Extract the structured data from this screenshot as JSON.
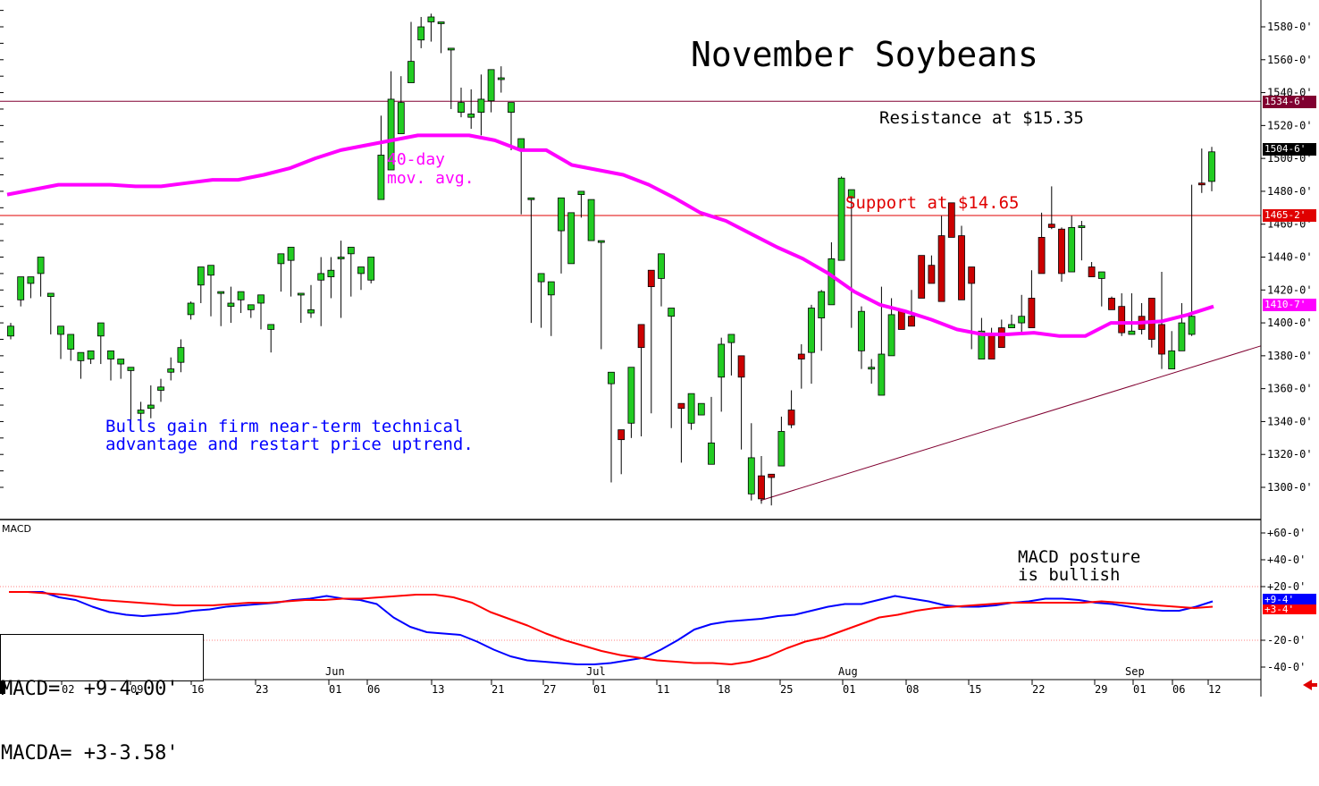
{
  "chart_data": {
    "type": "candlestick",
    "title": "November Soybeans",
    "x_tick_labels": [
      "02",
      "09",
      "16",
      "23",
      "01",
      "06",
      "13",
      "21",
      "27",
      "01",
      "11",
      "18",
      "25",
      "01",
      "08",
      "15",
      "22",
      "29",
      "01",
      "06",
      "12"
    ],
    "month_labels": [
      "Jun",
      "Jul",
      "Aug",
      "Sep"
    ],
    "y_ticks": [
      "1580-0'",
      "1560-0'",
      "1540-0'",
      "1520-0'",
      "1500-0'",
      "1480-0'",
      "1460-0'",
      "1440-0'",
      "1420-0'",
      "1400-0'",
      "1380-0'",
      "1360-0'",
      "1340-0'",
      "1320-0'",
      "1300-0'"
    ],
    "ylim": [
      1280,
      1595
    ],
    "bars": [
      [
        1392,
        1398,
        1390,
        1400
      ],
      [
        1414,
        1428,
        1410,
        1410
      ],
      [
        1424,
        1428,
        1415,
        1420
      ],
      [
        1430,
        1440,
        1417,
        1416
      ],
      [
        1416,
        1418,
        1393,
        1394
      ],
      [
        1393,
        1398,
        1378,
        1380
      ],
      [
        1384,
        1393,
        1377,
        1381
      ],
      [
        1377,
        1382,
        1366,
        1378
      ],
      [
        1378,
        1383,
        1375,
        1382
      ],
      [
        1392,
        1400,
        1375,
        1378
      ],
      [
        1378,
        1383,
        1365,
        1380
      ],
      [
        1375,
        1378,
        1366,
        1372
      ],
      [
        1371,
        1373,
        1338,
        1341
      ],
      [
        1345,
        1347,
        1340,
        1352
      ],
      [
        1348,
        1350,
        1342,
        1362
      ],
      [
        1359,
        1361,
        1352,
        1366
      ],
      [
        1370,
        1372,
        1365,
        1379
      ],
      [
        1376,
        1385,
        1370,
        1390
      ],
      [
        1405,
        1412,
        1402,
        1413
      ],
      [
        1423,
        1434,
        1412,
        1432
      ],
      [
        1429,
        1435,
        1404,
        1405
      ],
      [
        1418,
        1419,
        1398,
        1400
      ],
      [
        1410,
        1412,
        1400,
        1422
      ],
      [
        1414,
        1419,
        1406,
        1418
      ],
      [
        1408,
        1411,
        1403,
        1410
      ],
      [
        1412,
        1417,
        1396,
        1411
      ],
      [
        1396,
        1399,
        1382,
        1399
      ],
      [
        1436,
        1442,
        1422,
        1419
      ],
      [
        1438,
        1446,
        1416,
        1417
      ],
      [
        1417,
        1418,
        1400,
        1406
      ],
      [
        1406,
        1408,
        1403,
        1423
      ],
      [
        1426,
        1430,
        1398,
        1440
      ],
      [
        1428,
        1432,
        1415,
        1440
      ],
      [
        1440,
        1440,
        1403,
        1450
      ],
      [
        1442,
        1446,
        1416,
        1433
      ],
      [
        1430,
        1434,
        1420,
        1425
      ],
      [
        1426,
        1440,
        1424,
        1437
      ],
      [
        1475,
        1502,
        1490,
        1526
      ],
      [
        1493,
        1536,
        1540,
        1553
      ],
      [
        1515,
        1534,
        1522,
        1550
      ],
      [
        1546,
        1559,
        1570,
        1583
      ],
      [
        1572,
        1580,
        1567,
        1586
      ],
      [
        1583,
        1586,
        1571,
        1588
      ],
      [
        1582,
        1583,
        1564,
        1572
      ],
      [
        1566,
        1567,
        1530,
        1542
      ],
      [
        1528,
        1534,
        1525,
        1543
      ],
      [
        1525,
        1527,
        1518,
        1542
      ],
      [
        1528,
        1536,
        1514,
        1551
      ],
      [
        1535,
        1554,
        1528,
        1549
      ],
      [
        1548,
        1549,
        1540,
        1556
      ],
      [
        1528,
        1534,
        1505,
        1523
      ],
      [
        1505,
        1512,
        1471,
        1466
      ],
      [
        1475,
        1476,
        1400,
        1403
      ],
      [
        1425,
        1430,
        1397,
        1407
      ],
      [
        1417,
        1425,
        1392,
        1413
      ],
      [
        1456,
        1476,
        1430,
        1446
      ],
      [
        1436,
        1467,
        1461,
        1464
      ],
      [
        1478,
        1480,
        1464,
        1471
      ],
      [
        1450,
        1475,
        1455,
        1465
      ],
      [
        1449,
        1450,
        1384,
        1393
      ],
      [
        1363,
        1370,
        1303,
        1316
      ],
      [
        1335,
        1329,
        1308,
        1320
      ],
      [
        1339,
        1373,
        1330,
        1357
      ],
      [
        1399,
        1385,
        1331,
        1366
      ],
      [
        1432,
        1422,
        1345,
        1390
      ],
      [
        1427,
        1442,
        1416,
        1410
      ],
      [
        1404,
        1409,
        1336,
        1345
      ],
      [
        1351,
        1348,
        1315,
        1345
      ],
      [
        1339,
        1357,
        1335,
        1351
      ],
      [
        1344,
        1351,
        1345,
        1350
      ],
      [
        1314,
        1327,
        1340,
        1355
      ],
      [
        1367,
        1387,
        1346,
        1391
      ],
      [
        1388,
        1393,
        1368,
        1382
      ],
      [
        1380,
        1367,
        1323,
        1355
      ],
      [
        1296,
        1318,
        1292,
        1339
      ],
      [
        1307,
        1293,
        1290,
        1319
      ],
      [
        1308,
        1306,
        1289,
        1302
      ],
      [
        1313,
        1334,
        1314,
        1343
      ],
      [
        1347,
        1338,
        1336,
        1359
      ],
      [
        1381,
        1378,
        1360,
        1387
      ],
      [
        1382,
        1409,
        1363,
        1411
      ],
      [
        1403,
        1419,
        1383,
        1420
      ],
      [
        1411,
        1439,
        1428,
        1449
      ],
      [
        1438,
        1488,
        1458,
        1489
      ],
      [
        1476,
        1481,
        1397,
        1440
      ],
      [
        1383,
        1407,
        1372,
        1410
      ],
      [
        1373,
        1373,
        1363,
        1378
      ],
      [
        1356,
        1381,
        1418,
        1422
      ],
      [
        1380,
        1405,
        1401,
        1415
      ],
      [
        1408,
        1396,
        1402,
        1406
      ],
      [
        1404,
        1398,
        1409,
        1420
      ],
      [
        1441,
        1415,
        1427,
        1432
      ],
      [
        1435,
        1424,
        1428,
        1441
      ],
      [
        1453,
        1413,
        1420,
        1465
      ],
      [
        1473,
        1452,
        1457,
        1458
      ],
      [
        1453,
        1414,
        1424,
        1459
      ],
      [
        1434,
        1424,
        1384,
        1409
      ],
      [
        1378,
        1395,
        1383,
        1403
      ],
      [
        1393,
        1378,
        1382,
        1397
      ],
      [
        1397,
        1385,
        1389,
        1402
      ],
      [
        1397,
        1399,
        1399,
        1405
      ],
      [
        1400,
        1404,
        1394,
        1417
      ],
      [
        1415,
        1397,
        1432,
        1429
      ],
      [
        1452,
        1430,
        1460,
        1467
      ],
      [
        1460,
        1458,
        1457,
        1483
      ],
      [
        1457,
        1430,
        1425,
        1458
      ],
      [
        1431,
        1458,
        1464,
        1465
      ],
      [
        1458,
        1459,
        1438,
        1462
      ],
      [
        1434,
        1428,
        1434,
        1437
      ],
      [
        1427,
        1431,
        1410,
        1420
      ],
      [
        1415,
        1408,
        1414,
        1416
      ],
      [
        1410,
        1394,
        1392,
        1418
      ],
      [
        1393,
        1395,
        1399,
        1418
      ],
      [
        1404,
        1396,
        1393,
        1412
      ],
      [
        1415,
        1390,
        1385,
        1406
      ],
      [
        1399,
        1381,
        1372,
        1431
      ],
      [
        1372,
        1383,
        1391,
        1395
      ],
      [
        1383,
        1400,
        1388,
        1412
      ],
      [
        1393,
        1404,
        1392,
        1484
      ],
      [
        1485,
        1484,
        1479,
        1506
      ],
      [
        1486,
        1504,
        1480,
        1507
      ]
    ],
    "series": [
      {
        "name": "40-day mov. avg.",
        "color": "#ff00ff",
        "values": [
          1478,
          1481,
          1484,
          1484,
          1484,
          1483,
          1483,
          1485,
          1487,
          1487,
          1490,
          1494,
          1500,
          1505,
          1508,
          1511,
          1514,
          1514,
          1514,
          1511,
          1505,
          1505,
          1496,
          1493,
          1490,
          1484,
          1476,
          1467,
          1462,
          1454,
          1446,
          1439,
          1430,
          1419,
          1411,
          1407,
          1402,
          1396,
          1393,
          1393,
          1394,
          1392,
          1392,
          1400,
          1400,
          1401,
          1405,
          1410
        ]
      },
      {
        "name": "MACD",
        "color": "#0000ff",
        "values": [
          16,
          16,
          16,
          12,
          10,
          5,
          1,
          -1,
          -2,
          -1,
          0,
          2,
          3,
          5,
          6,
          7,
          8,
          10,
          11,
          13,
          11,
          10,
          7,
          -3,
          -10,
          -14,
          -15,
          -16,
          -21,
          -27,
          -32,
          -35,
          -36,
          -37,
          -38,
          -38,
          -37,
          -35,
          -33,
          -27,
          -20,
          -12,
          -8,
          -6,
          -5,
          -4,
          -2,
          -1,
          2,
          5,
          7,
          7,
          10,
          13,
          11,
          9,
          6,
          5,
          5,
          6,
          8,
          9,
          11,
          11,
          10,
          8,
          7,
          5,
          3,
          2,
          2,
          5,
          9
        ]
      },
      {
        "name": "MACDA",
        "color": "#ff0000",
        "values": [
          16,
          16,
          15,
          14,
          12,
          10,
          9,
          8,
          7,
          6,
          6,
          6,
          7,
          8,
          8,
          9,
          10,
          10,
          11,
          11,
          12,
          13,
          14,
          14,
          12,
          8,
          1,
          -4,
          -9,
          -15,
          -20,
          -24,
          -28,
          -31,
          -33,
          -35,
          -36,
          -37,
          -37,
          -38,
          -36,
          -32,
          -26,
          -21,
          -18,
          -13,
          -8,
          -3,
          -1,
          2,
          4,
          5,
          6,
          7,
          8,
          8,
          8,
          8,
          8,
          9,
          8,
          7,
          6,
          5,
          4,
          5
        ]
      }
    ],
    "price_levels": {
      "resistance_badge": "1534-6'",
      "last_badge": "1504-6'",
      "support_badge": "1465-2'",
      "ma_badge": "1410-7'"
    },
    "macd_ticks": [
      "+60-0'",
      "+40-0'",
      "+20-0'",
      "-20-0'",
      "-40-0'"
    ],
    "macd_badges": {
      "macd": "+9-4'",
      "macda": "+3-4'"
    },
    "macd_panel_label": "MACD"
  },
  "annotations": {
    "resistance": "Resistance at $15.35",
    "support": "Support at $14.65",
    "ma_line1": "40-day",
    "ma_line2": "mov. avg.",
    "bulls_line1": "Bulls gain firm near-term technical",
    "bulls_line2": "advantage and restart price uptrend.",
    "macd_line1": "MACD posture",
    "macd_line2": "is bullish"
  },
  "readout": {
    "macd": "MACD=  +9-4.00'",
    "macda": "MACDA= +3-3.58'"
  },
  "colors": {
    "up": "#22cc22",
    "down": "#cc0000",
    "ma": "#ff00ff",
    "macd": "#0000ff",
    "macda": "#ff0000",
    "resistance": "#800030",
    "support": "#e00000",
    "trend": "#800030"
  }
}
